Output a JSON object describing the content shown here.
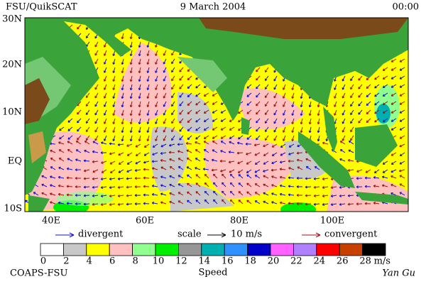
{
  "header": {
    "source": "FSU/QuikSCAT",
    "date": "9 March 2004",
    "time": "00:00"
  },
  "map": {
    "lat_labels": [
      "30N",
      "20N",
      "10N",
      "EQ",
      "10S"
    ],
    "lon_labels": [
      "40E",
      "60E",
      "80E",
      "100E"
    ]
  },
  "legend": {
    "divergent": "divergent",
    "scale": "scale",
    "scale_value": "10 m/s",
    "convergent": "convergent",
    "divergent_color": "#1010d0",
    "convergent_color": "#a01010"
  },
  "colorbar": {
    "colors": [
      "#ffffff",
      "#c8c8c8",
      "#ffff00",
      "#ffc0c0",
      "#90ff90",
      "#00ee00",
      "#969696",
      "#00b0b0",
      "#3090ff",
      "#0000c8",
      "#ff60ff",
      "#b080ff",
      "#ff0000",
      "#c84000",
      "#000000"
    ],
    "labels": [
      "0",
      "2",
      "4",
      "6",
      "8",
      "10",
      "12",
      "14",
      "16",
      "18",
      "20",
      "22",
      "24",
      "26",
      "28"
    ],
    "unit": "m/s",
    "title": "Speed"
  },
  "footer": {
    "left": "COAPS-FSU",
    "right": "Yan Gu"
  }
}
